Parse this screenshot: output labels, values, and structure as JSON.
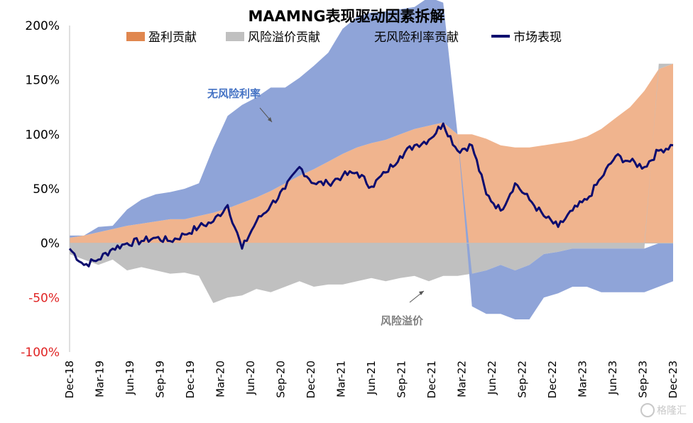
{
  "chart_data": {
    "type": "area",
    "title": "MAAMNG表现驱动因素拆解",
    "y_tick_labels": [
      "200%",
      "150%",
      "100%",
      "50%",
      "0%",
      "-50%",
      "-100%"
    ],
    "y_tick_values": [
      200,
      150,
      100,
      50,
      0,
      -50,
      -100
    ],
    "ylim": [
      -100,
      200
    ],
    "x_tick_labels": [
      "Dec-18",
      "Mar-19",
      "Jun-19",
      "Sep-19",
      "Dec-19",
      "Mar-20",
      "Jun-20",
      "Sep-20",
      "Dec-20",
      "Mar-21",
      "Jun-21",
      "Sep-21",
      "Dec-21",
      "Mar-22",
      "Jun-22",
      "Sep-22",
      "Dec-22",
      "Mar-23",
      "Jun-23",
      "Sep-23",
      "Dec-23"
    ],
    "legend_position": "top",
    "colors": {
      "earnings": "#f0b48e",
      "earnings_legend": "#e0874f",
      "risk_premium": "#c0c0c0",
      "risk_free": "#8fa4d8",
      "market": "#0b0c6e",
      "annotation_blue": "#4472c4",
      "annotation_gray": "#808080",
      "negative_tick": "#e02424"
    },
    "series": [
      {
        "name": "盈利贡献",
        "values": [
          5,
          7,
          10,
          13,
          16,
          18,
          20,
          22,
          22,
          25,
          28,
          32,
          37,
          42,
          48,
          55,
          62,
          68,
          75,
          82,
          88,
          92,
          95,
          100,
          105,
          108,
          111,
          100,
          100,
          96,
          90,
          88,
          88,
          90,
          92,
          94,
          98,
          105,
          115,
          125,
          140,
          160,
          165
        ]
      },
      {
        "name": "风险溢价贡献",
        "values": [
          -10,
          -15,
          -20,
          -15,
          -25,
          -22,
          -25,
          -28,
          -27,
          -30,
          -55,
          -50,
          -48,
          -42,
          -45,
          -40,
          -35,
          -40,
          -38,
          -38,
          -35,
          -32,
          -35,
          -32,
          -30,
          -35,
          -30,
          -30,
          -28,
          -25,
          -20,
          -25,
          -20,
          -10,
          -8,
          -5,
          -5,
          -5,
          -5,
          -5,
          -5,
          5,
          0
        ]
      },
      {
        "name": "无风险利率贡献",
        "values": [
          2,
          0,
          5,
          3,
          15,
          22,
          25,
          25,
          28,
          30,
          60,
          85,
          90,
          92,
          95,
          88,
          90,
          95,
          100,
          115,
          120,
          120,
          118,
          115,
          112,
          118,
          110,
          0,
          -30,
          -40,
          -45,
          -45,
          -50,
          -40,
          -38,
          -35,
          -35,
          -40,
          -40,
          -40,
          -40,
          -40,
          -35
        ]
      },
      {
        "name": "市场表现",
        "values": [
          -5,
          -20,
          -15,
          -5,
          0,
          2,
          5,
          2,
          8,
          15,
          20,
          35,
          -5,
          20,
          35,
          50,
          70,
          55,
          55,
          62,
          65,
          52,
          65,
          80,
          90,
          95,
          110,
          85,
          90,
          45,
          30,
          55,
          40,
          25,
          15,
          30,
          40,
          60,
          80,
          75,
          70,
          85,
          90
        ]
      }
    ],
    "annotations": [
      {
        "text": "无风险利率",
        "color_key": "annotation_blue"
      },
      {
        "text": "风险溢价",
        "color_key": "annotation_gray"
      }
    ],
    "watermark": "格隆汇"
  }
}
